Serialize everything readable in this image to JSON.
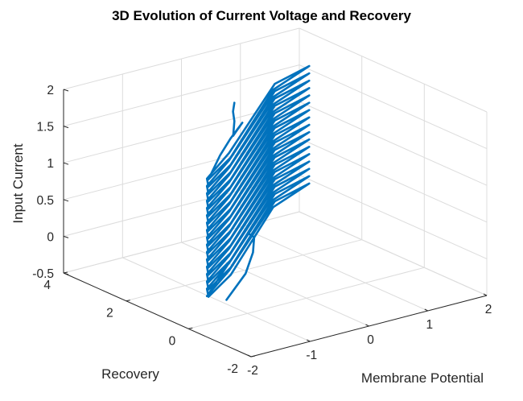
{
  "chart_data": {
    "type": "line",
    "title": "3D Evolution of Current Voltage and Recovery",
    "xlabel": "Membrane Potential",
    "ylabel": "Recovery",
    "zlabel": "Input Current",
    "xlim": [
      -2,
      2
    ],
    "ylim": [
      -2,
      4
    ],
    "zlim": [
      -0.5,
      2
    ],
    "x_ticks": [
      "-2",
      "-1",
      "0",
      "1",
      "2"
    ],
    "y_ticks": [
      "-2",
      "0",
      "2",
      "4"
    ],
    "z_ticks": [
      "-0.5",
      "0",
      "0.5",
      "1",
      "1.5",
      "2"
    ],
    "grid": true,
    "series": [
      {
        "color": "#0072BD",
        "description": "noisy limit-cycle trajectory of (V, W, I), spiralling up from I≈-0.3 to I≈1.9",
        "points": [
          [
            -1.25,
            0.2,
            -0.3
          ],
          [
            -0.45,
            1.1,
            -0.28
          ],
          [
            0.1,
            1.9,
            -0.26
          ],
          [
            0.2,
            2.05,
            -0.1
          ],
          [
            0.05,
            1.95,
            0.0
          ],
          [
            -1.9,
            -0.4,
            0.0
          ],
          [
            -1.1,
            0.4,
            0.03
          ],
          [
            1.0,
            2.9,
            0.06
          ],
          [
            1.85,
            3.4,
            0.03
          ],
          [
            1.0,
            2.95,
            -0.03
          ],
          [
            -1.1,
            0.35,
            -0.02
          ],
          [
            -1.9,
            -0.45,
            0.0
          ],
          [
            -1.9,
            -0.4,
            0.1
          ],
          [
            -1.1,
            0.4,
            0.13
          ],
          [
            1.0,
            2.9,
            0.16
          ],
          [
            1.85,
            3.4,
            0.13
          ],
          [
            1.0,
            2.95,
            0.07
          ],
          [
            -1.1,
            0.35,
            0.08
          ],
          [
            -1.9,
            -0.45,
            0.1
          ],
          [
            -1.9,
            -0.4,
            0.2
          ],
          [
            -1.1,
            0.4,
            0.23
          ],
          [
            1.0,
            2.9,
            0.26
          ],
          [
            1.85,
            3.4,
            0.23
          ],
          [
            1.0,
            2.95,
            0.17
          ],
          [
            -1.1,
            0.35,
            0.18
          ],
          [
            -1.9,
            -0.45,
            0.2
          ],
          [
            -1.9,
            -0.4,
            0.3
          ],
          [
            -1.1,
            0.4,
            0.33
          ],
          [
            1.0,
            2.9,
            0.36
          ],
          [
            1.85,
            3.4,
            0.33
          ],
          [
            1.0,
            2.95,
            0.27
          ],
          [
            -1.1,
            0.35,
            0.28
          ],
          [
            -1.9,
            -0.45,
            0.3
          ],
          [
            -1.9,
            -0.4,
            0.4
          ],
          [
            -1.1,
            0.4,
            0.43
          ],
          [
            1.0,
            2.9,
            0.46
          ],
          [
            1.85,
            3.4,
            0.43
          ],
          [
            1.0,
            2.95,
            0.37
          ],
          [
            -1.1,
            0.35,
            0.38
          ],
          [
            -1.9,
            -0.45,
            0.4
          ],
          [
            -1.9,
            -0.4,
            0.5
          ],
          [
            -1.1,
            0.4,
            0.53
          ],
          [
            1.0,
            2.9,
            0.56
          ],
          [
            1.85,
            3.4,
            0.53
          ],
          [
            1.0,
            2.95,
            0.47
          ],
          [
            -1.1,
            0.35,
            0.48
          ],
          [
            -1.9,
            -0.45,
            0.5
          ],
          [
            -1.9,
            -0.4,
            0.6
          ],
          [
            -1.1,
            0.4,
            0.63
          ],
          [
            1.0,
            2.9,
            0.66
          ],
          [
            1.85,
            3.4,
            0.63
          ],
          [
            1.0,
            2.95,
            0.57
          ],
          [
            -1.1,
            0.35,
            0.58
          ],
          [
            -1.9,
            -0.45,
            0.6
          ],
          [
            -1.9,
            -0.4,
            0.7
          ],
          [
            -1.1,
            0.4,
            0.73
          ],
          [
            1.0,
            2.9,
            0.76
          ],
          [
            1.85,
            3.4,
            0.73
          ],
          [
            1.0,
            2.95,
            0.67
          ],
          [
            -1.1,
            0.35,
            0.68
          ],
          [
            -1.9,
            -0.45,
            0.7
          ],
          [
            -1.9,
            -0.4,
            0.8
          ],
          [
            -1.1,
            0.4,
            0.83
          ],
          [
            1.0,
            2.9,
            0.86
          ],
          [
            1.85,
            3.4,
            0.83
          ],
          [
            1.0,
            2.95,
            0.77
          ],
          [
            -1.1,
            0.35,
            0.78
          ],
          [
            -1.9,
            -0.45,
            0.8
          ],
          [
            -1.9,
            -0.4,
            0.9
          ],
          [
            -1.1,
            0.4,
            0.93
          ],
          [
            1.0,
            2.9,
            0.96
          ],
          [
            1.85,
            3.4,
            0.93
          ],
          [
            1.0,
            2.95,
            0.87
          ],
          [
            -1.1,
            0.35,
            0.88
          ],
          [
            -1.9,
            -0.45,
            0.9
          ],
          [
            -1.9,
            -0.4,
            1.0
          ],
          [
            -1.1,
            0.4,
            1.03
          ],
          [
            1.0,
            2.9,
            1.06
          ],
          [
            1.85,
            3.4,
            1.03
          ],
          [
            1.0,
            2.95,
            0.97
          ],
          [
            -1.1,
            0.35,
            0.98
          ],
          [
            -1.9,
            -0.45,
            1.0
          ],
          [
            -1.9,
            -0.4,
            1.1
          ],
          [
            -1.1,
            0.4,
            1.13
          ],
          [
            1.0,
            2.9,
            1.16
          ],
          [
            1.85,
            3.4,
            1.13
          ],
          [
            1.0,
            2.95,
            1.07
          ],
          [
            -1.1,
            0.35,
            1.08
          ],
          [
            -1.9,
            -0.45,
            1.1
          ],
          [
            -1.9,
            -0.4,
            1.2
          ],
          [
            -1.1,
            0.4,
            1.23
          ],
          [
            1.0,
            2.9,
            1.26
          ],
          [
            1.85,
            3.4,
            1.23
          ],
          [
            1.0,
            2.95,
            1.17
          ],
          [
            -1.1,
            0.35,
            1.18
          ],
          [
            -1.9,
            -0.45,
            1.2
          ],
          [
            -1.9,
            -0.4,
            1.3
          ],
          [
            -1.1,
            0.4,
            1.33
          ],
          [
            1.0,
            2.9,
            1.36
          ],
          [
            1.85,
            3.4,
            1.33
          ],
          [
            1.0,
            2.95,
            1.27
          ],
          [
            -1.1,
            0.35,
            1.28
          ],
          [
            -1.9,
            -0.45,
            1.3
          ],
          [
            -1.9,
            -0.4,
            1.4
          ],
          [
            -1.1,
            0.4,
            1.43
          ],
          [
            1.0,
            2.9,
            1.46
          ],
          [
            1.85,
            3.4,
            1.43
          ],
          [
            1.0,
            2.95,
            1.37
          ],
          [
            -1.1,
            0.35,
            1.38
          ],
          [
            -1.9,
            -0.45,
            1.4
          ],
          [
            -1.9,
            -0.4,
            1.5
          ],
          [
            -1.1,
            0.4,
            1.53
          ],
          [
            1.0,
            2.9,
            1.56
          ],
          [
            1.85,
            3.4,
            1.53
          ],
          [
            1.0,
            2.95,
            1.47
          ],
          [
            -1.1,
            0.35,
            1.48
          ],
          [
            -1.9,
            -0.45,
            1.5
          ],
          [
            -1.9,
            -0.4,
            1.6
          ],
          [
            -1.1,
            0.4,
            1.63
          ],
          [
            1.0,
            2.9,
            1.66
          ],
          [
            1.85,
            3.4,
            1.63
          ],
          [
            1.0,
            2.95,
            1.57
          ],
          [
            -1.1,
            0.35,
            1.58
          ],
          [
            -1.9,
            -0.45,
            1.6
          ],
          [
            -1.2,
            0.5,
            1.6
          ],
          [
            -0.6,
            1.3,
            1.55
          ],
          [
            0.0,
            2.05,
            1.5
          ],
          [
            -0.3,
            1.7,
            1.5
          ],
          [
            -0.5,
            1.4,
            1.55
          ],
          [
            -0.4,
            1.55,
            1.7
          ],
          [
            -0.45,
            1.5,
            1.85
          ],
          [
            -0.4,
            1.55,
            1.95
          ]
        ]
      }
    ]
  }
}
